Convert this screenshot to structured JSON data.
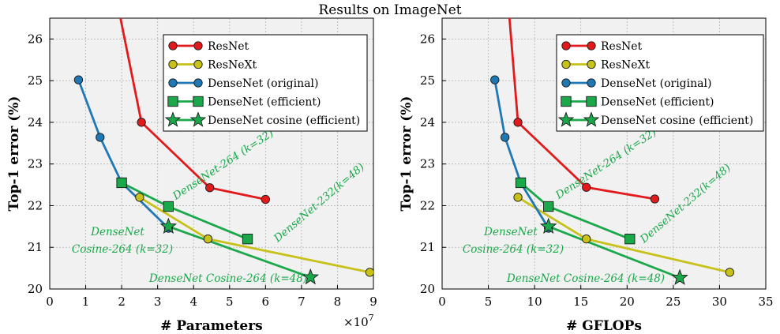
{
  "figure_title": "Results on ImageNet",
  "chart_data": [
    {
      "type": "line",
      "title": "",
      "xlabel": "# Parameters",
      "ylabel": "Top-1 error (%)",
      "x_scale_label": "×10",
      "x_scale_exponent": "7",
      "xlim": [
        0,
        9
      ],
      "ylim": [
        20,
        26.5
      ],
      "xticks": [
        0,
        1,
        2,
        3,
        4,
        5,
        6,
        7,
        8,
        9
      ],
      "yticks": [
        20,
        21,
        22,
        23,
        24,
        25,
        26
      ],
      "grid": true,
      "legend_position": "top-right",
      "series": [
        {
          "name": "ResNet",
          "color": "#e31a1c",
          "marker": "circle",
          "x": [
            1.15,
            2.55,
            4.45,
            6.0
          ],
          "y": [
            30.0,
            24.0,
            22.43,
            22.15
          ]
        },
        {
          "name": "ResNeXt",
          "color": "#c8c11a",
          "marker": "circle",
          "x": [
            2.5,
            4.4,
            8.9
          ],
          "y": [
            22.2,
            21.2,
            20.4
          ]
        },
        {
          "name": "DenseNet (original)",
          "color": "#1f78b4",
          "marker": "circle",
          "x": [
            0.8,
            1.4,
            2.0,
            3.3
          ],
          "y": [
            25.02,
            23.64,
            22.55,
            21.46
          ]
        },
        {
          "name": "DenseNet (efficient)",
          "color": "#1aa84a",
          "marker": "square",
          "x": [
            2.0,
            3.3,
            5.5
          ],
          "y": [
            22.55,
            21.98,
            21.2
          ]
        },
        {
          "name": "DenseNet cosine (efficient)",
          "color": "#1aa84a",
          "marker": "star",
          "x": [
            3.3,
            7.25
          ],
          "y": [
            21.5,
            20.28
          ]
        }
      ],
      "annotations": [
        {
          "text": "DenseNet-264 (k=32)"
        },
        {
          "text": "DenseNet-232(k=48)"
        },
        {
          "text": "DenseNet"
        },
        {
          "text": "Cosine-264 (k=32)"
        },
        {
          "text": "DenseNet Cosine-264 (k=48)"
        }
      ]
    },
    {
      "type": "line",
      "title": "",
      "xlabel": "# GFLOPs",
      "ylabel": "Top-1 error (%)",
      "xlim": [
        0,
        35
      ],
      "ylim": [
        20,
        26.5
      ],
      "xticks": [
        0,
        5,
        10,
        15,
        20,
        25,
        30,
        35
      ],
      "yticks": [
        20,
        21,
        22,
        23,
        24,
        25,
        26
      ],
      "grid": true,
      "legend_position": "top-right",
      "series": [
        {
          "name": "ResNet",
          "color": "#e31a1c",
          "marker": "circle",
          "x": [
            6.0,
            8.2,
            15.6,
            23.0
          ],
          "y": [
            30.0,
            24.0,
            22.44,
            22.16
          ]
        },
        {
          "name": "ResNeXt",
          "color": "#c8c11a",
          "marker": "circle",
          "x": [
            8.2,
            15.6,
            31.1
          ],
          "y": [
            22.2,
            21.2,
            20.4
          ]
        },
        {
          "name": "DenseNet (original)",
          "color": "#1f78b4",
          "marker": "circle",
          "x": [
            5.7,
            6.8,
            8.5,
            11.5
          ],
          "y": [
            25.02,
            23.64,
            22.55,
            21.46
          ]
        },
        {
          "name": "DenseNet (efficient)",
          "color": "#1aa84a",
          "marker": "square",
          "x": [
            8.5,
            11.5,
            20.3
          ],
          "y": [
            22.55,
            21.98,
            21.2
          ]
        },
        {
          "name": "DenseNet cosine (efficient)",
          "color": "#1aa84a",
          "marker": "star",
          "x": [
            11.5,
            25.7
          ],
          "y": [
            21.5,
            20.27
          ]
        }
      ],
      "annotations": [
        {
          "text": "DenseNet-264 (k=32)"
        },
        {
          "text": "DenseNet-232(k=48)"
        },
        {
          "text": "DenseNet"
        },
        {
          "text": "Cosine-264 (k=32)"
        },
        {
          "text": "DenseNet Cosine-264 (k=48)"
        }
      ]
    }
  ]
}
